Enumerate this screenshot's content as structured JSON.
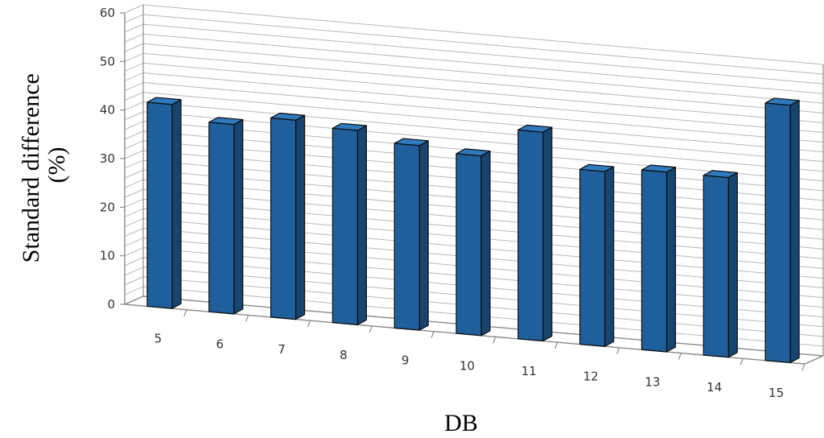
{
  "chart_data": {
    "type": "bar",
    "title": "",
    "xlabel": "DB",
    "ylabel_lines": [
      "Standard difference",
      "(%)"
    ],
    "categories": [
      "5",
      "6",
      "7",
      "8",
      "9",
      "10",
      "11",
      "12",
      "13",
      "14",
      "15"
    ],
    "values": [
      42,
      39,
      41,
      40,
      38,
      37,
      43,
      36,
      37,
      37,
      53
    ],
    "ylim": [
      0,
      60
    ],
    "yticks": [
      "0",
      "10",
      "20",
      "30",
      "40",
      "50",
      "60"
    ],
    "grid": true,
    "legend": "none",
    "colors": {
      "bar_front": "#1f5f9b",
      "bar_side": "#17456f",
      "bar_top": "#2f79bd",
      "bar_outline": "#0b0b0b",
      "grid": "#b8b8b8",
      "axis": "#8c8c8c"
    }
  }
}
